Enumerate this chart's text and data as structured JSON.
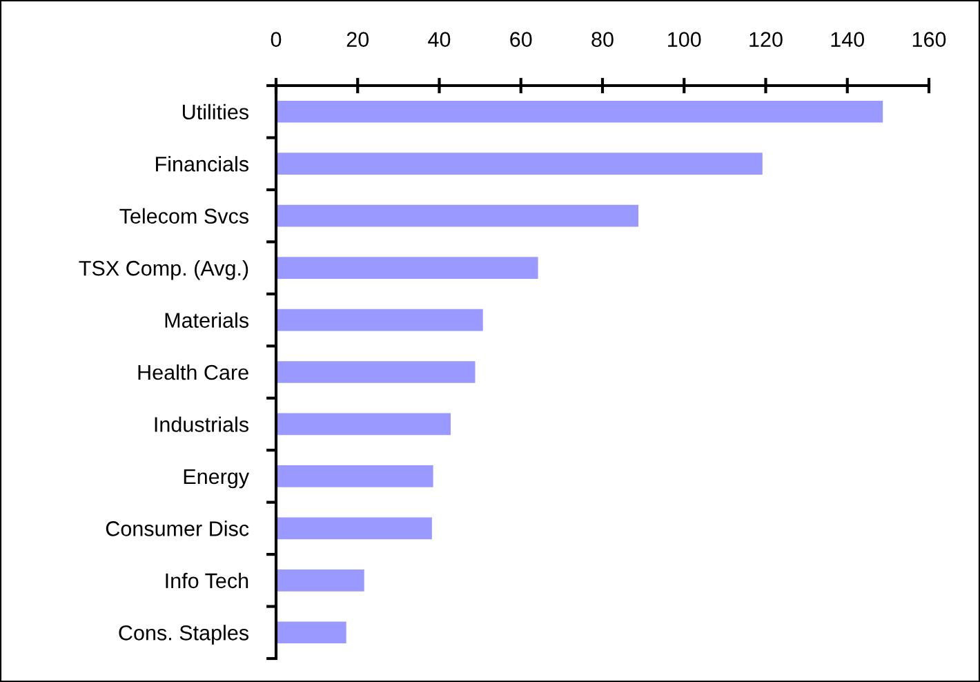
{
  "chart_data": {
    "type": "bar",
    "orientation": "horizontal",
    "categories": [
      "Utilities",
      "Financials",
      "Telecom Svcs",
      "TSX Comp. (Avg.)",
      "Materials",
      "Health Care",
      "Industrials",
      "Energy",
      "Consumer Disc",
      "Info Tech",
      "Cons. Staples"
    ],
    "values": [
      148.7,
      119.2,
      88.8,
      64.2,
      50.7,
      48.8,
      42.8,
      38.5,
      38.2,
      21.6,
      17.2
    ],
    "color": "#9999ff",
    "xlim": [
      0,
      160
    ],
    "xticks": [
      0,
      20,
      40,
      60,
      80,
      100,
      120,
      140,
      160
    ],
    "grid": false,
    "legend": false
  }
}
